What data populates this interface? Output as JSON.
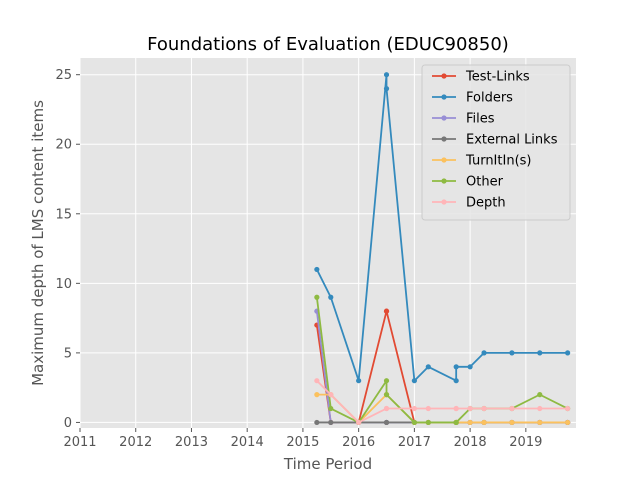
{
  "chart_data": {
    "type": "line",
    "title": "Foundations of Evaluation (EDUC90850)",
    "xlabel": "Time Period",
    "ylabel": "Maximum depth of LMS content items",
    "xlim": [
      2011,
      2019.9
    ],
    "ylim": [
      -0.4,
      26.2
    ],
    "xticks": [
      2011,
      2012,
      2013,
      2014,
      2015,
      2016,
      2017,
      2018,
      2019
    ],
    "xtick_labels": [
      "2011",
      "2012",
      "2013",
      "2014",
      "2015",
      "2016",
      "2017",
      "2018",
      "2019"
    ],
    "yticks": [
      0,
      5,
      10,
      15,
      20,
      25
    ],
    "ytick_labels": [
      "0",
      "5",
      "10",
      "15",
      "20",
      "25"
    ],
    "grid": true,
    "legend_position": "top-right",
    "x": [
      2015.25,
      2015.5,
      2016.0,
      2016.5,
      2016.5,
      2017.0,
      2017.25,
      2017.75,
      2017.75,
      2018.0,
      2018.25,
      2018.75,
      2019.25,
      2019.75
    ],
    "series": [
      {
        "name": "Test-Links",
        "color": "#E24A33",
        "values": [
          7,
          0,
          0,
          8,
          8,
          0,
          0,
          0,
          0,
          0,
          0,
          0,
          0,
          0
        ]
      },
      {
        "name": "Folders",
        "color": "#348ABD",
        "values": [
          11,
          9,
          3,
          25,
          24,
          3,
          4,
          3,
          4,
          4,
          5,
          5,
          5,
          5
        ]
      },
      {
        "name": "Files",
        "color": "#988ED5",
        "values": [
          8,
          0,
          0,
          0,
          0,
          0,
          0,
          0,
          0,
          0,
          0,
          0,
          0,
          0
        ]
      },
      {
        "name": "External Links",
        "color": "#777777",
        "values": [
          0,
          0,
          0,
          0,
          0,
          0,
          0,
          0,
          0,
          0,
          0,
          0,
          0,
          0
        ]
      },
      {
        "name": "TurnItIn(s)",
        "color": "#FBC15E",
        "values": [
          2,
          2,
          0,
          2,
          2,
          0,
          0,
          0,
          0,
          0,
          0,
          0,
          0,
          0
        ]
      },
      {
        "name": "Other",
        "color": "#8EBA42",
        "values": [
          9,
          1,
          0,
          3,
          2,
          0,
          0,
          0,
          0,
          1,
          1,
          1,
          2,
          1
        ]
      },
      {
        "name": "Depth",
        "color": "#FFB5B8",
        "values": [
          3,
          2,
          0,
          1,
          1,
          1,
          1,
          1,
          1,
          1,
          1,
          1,
          1,
          1
        ]
      }
    ]
  }
}
